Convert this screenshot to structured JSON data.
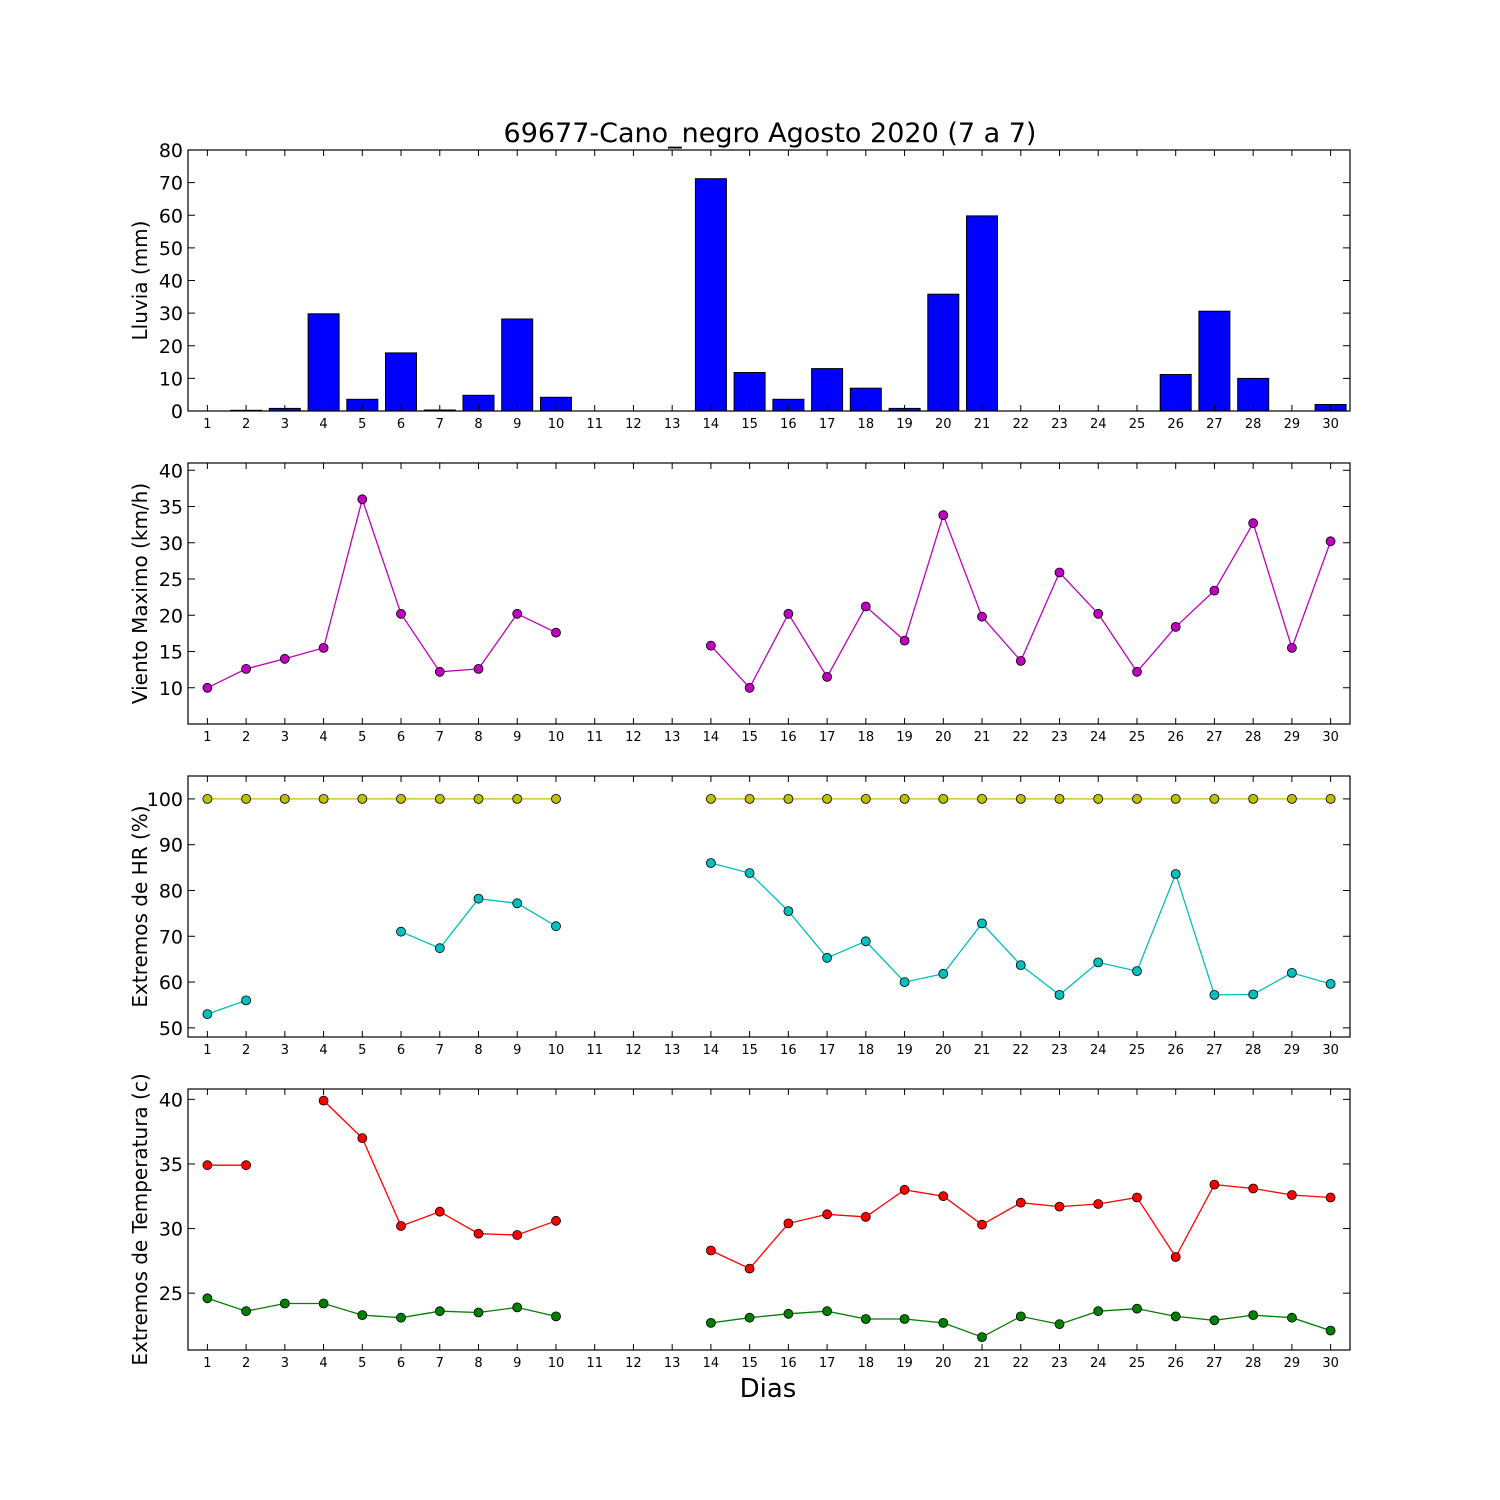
{
  "figure": {
    "title": "69677-Cano_negro Agosto 2020  (7 a 7)",
    "xlabel": "Dias"
  },
  "chart_data": [
    {
      "type": "bar",
      "id": "lluvia",
      "ylabel": "Lluvia (mm)",
      "ylim": [
        0,
        80
      ],
      "yticks": [
        0,
        10,
        20,
        30,
        40,
        50,
        60,
        70,
        80
      ],
      "x": [
        1,
        2,
        3,
        4,
        5,
        6,
        7,
        8,
        9,
        10,
        11,
        12,
        13,
        14,
        15,
        16,
        17,
        18,
        19,
        20,
        21,
        22,
        23,
        24,
        25,
        26,
        27,
        28,
        29,
        30
      ],
      "series": [
        {
          "color": "#0000ff",
          "values": [
            0,
            0.2,
            0.8,
            29.8,
            3.6,
            17.8,
            0.3,
            4.8,
            28.2,
            4.2,
            null,
            null,
            null,
            71.2,
            11.8,
            3.6,
            13.0,
            7.0,
            0.8,
            35.8,
            59.8,
            0,
            0,
            0,
            0,
            11.2,
            30.6,
            10.0,
            0,
            2.0
          ]
        }
      ]
    },
    {
      "type": "line",
      "id": "viento",
      "ylabel": "Viento Maximo (km/h)",
      "ylim": [
        5,
        41
      ],
      "yticks": [
        10,
        15,
        20,
        25,
        30,
        35,
        40
      ],
      "x": [
        1,
        2,
        3,
        4,
        5,
        6,
        7,
        8,
        9,
        10,
        11,
        12,
        13,
        14,
        15,
        16,
        17,
        18,
        19,
        20,
        21,
        22,
        23,
        24,
        25,
        26,
        27,
        28,
        29,
        30
      ],
      "series": [
        {
          "color": "#bf00bf",
          "values": [
            10.0,
            12.6,
            14.0,
            15.5,
            36.0,
            20.2,
            12.2,
            12.6,
            20.2,
            17.6,
            null,
            null,
            null,
            15.8,
            10.0,
            20.2,
            11.5,
            21.2,
            16.5,
            33.8,
            19.8,
            13.7,
            25.9,
            20.2,
            12.2,
            18.4,
            23.4,
            32.7,
            15.5,
            30.2
          ]
        }
      ]
    },
    {
      "type": "line",
      "id": "hr",
      "ylabel": "Extremos de HR (%)",
      "ylim": [
        48,
        105
      ],
      "yticks": [
        50,
        60,
        70,
        80,
        90,
        100
      ],
      "x": [
        1,
        2,
        3,
        4,
        5,
        6,
        7,
        8,
        9,
        10,
        11,
        12,
        13,
        14,
        15,
        16,
        17,
        18,
        19,
        20,
        21,
        22,
        23,
        24,
        25,
        26,
        27,
        28,
        29,
        30
      ],
      "series": [
        {
          "color": "#bfbf00",
          "values": [
            100,
            100,
            100,
            100,
            100,
            100,
            100,
            100,
            100,
            100,
            null,
            null,
            null,
            100,
            100,
            100,
            100,
            100,
            100,
            100,
            100,
            100,
            100,
            100,
            100,
            100,
            100,
            100,
            100,
            100
          ]
        },
        {
          "color": "#00bfbf",
          "values": [
            53,
            56,
            null,
            null,
            null,
            71,
            67.4,
            78.2,
            77.2,
            72.2,
            null,
            null,
            null,
            86,
            83.8,
            75.5,
            65.3,
            68.9,
            60,
            61.8,
            72.8,
            63.7,
            57.2,
            64.3,
            62.4,
            83.6,
            57.2,
            57.3,
            62,
            59.6
          ]
        }
      ]
    },
    {
      "type": "line",
      "id": "temp",
      "ylabel": "Extremos de Temperatura (c)",
      "ylim": [
        20.6,
        40.8
      ],
      "yticks": [
        25,
        30,
        35,
        40
      ],
      "x": [
        1,
        2,
        3,
        4,
        5,
        6,
        7,
        8,
        9,
        10,
        11,
        12,
        13,
        14,
        15,
        16,
        17,
        18,
        19,
        20,
        21,
        22,
        23,
        24,
        25,
        26,
        27,
        28,
        29,
        30
      ],
      "series": [
        {
          "color": "#ff0000",
          "values": [
            34.9,
            34.9,
            null,
            39.9,
            37.0,
            30.2,
            31.3,
            29.6,
            29.5,
            30.6,
            null,
            null,
            null,
            28.3,
            26.9,
            30.4,
            31.1,
            30.9,
            33.0,
            32.5,
            30.3,
            32.0,
            31.7,
            31.9,
            32.4,
            27.8,
            33.4,
            33.1,
            32.6,
            32.4
          ]
        },
        {
          "color": "#007f00",
          "values": [
            24.6,
            23.6,
            24.2,
            24.2,
            23.3,
            23.1,
            23.6,
            23.5,
            23.9,
            23.2,
            null,
            null,
            null,
            22.7,
            23.1,
            23.4,
            23.6,
            23.0,
            23.0,
            22.7,
            21.6,
            23.2,
            22.6,
            23.6,
            23.8,
            23.2,
            22.9,
            23.3,
            23.1,
            22.1
          ]
        }
      ]
    }
  ]
}
